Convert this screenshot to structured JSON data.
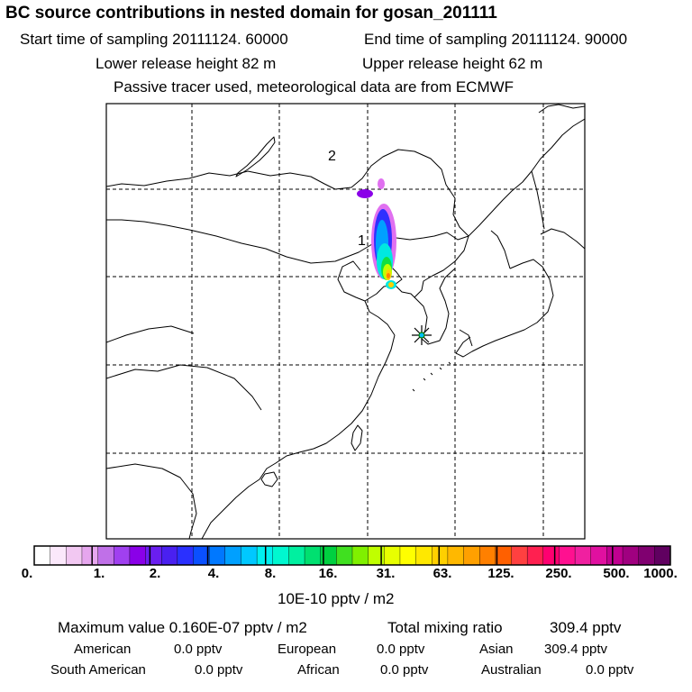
{
  "header": {
    "title": "BC  source contributions in nested domain for gosan_201111",
    "start_time": "Start time of sampling 20111124. 60000",
    "end_time": "End time of sampling 20111124. 90000",
    "lower_height": "Lower release height   82 m",
    "upper_height": "Upper release height   62 m",
    "tracer_note": "Passive tracer used, meteorological data are from ECMWF"
  },
  "map": {
    "region_labels": [
      "2",
      "1"
    ],
    "receptor_marker": "star-icon",
    "plume_colors": [
      "#8a00e8",
      "#e070f0",
      "#3030ff",
      "#00a0ff",
      "#00e8e0",
      "#10e040",
      "#c0ff00",
      "#ffd000",
      "#ff8000",
      "#ff0000"
    ]
  },
  "colorbar": {
    "colors": [
      "#ffffff",
      "#fbe8fb",
      "#f2c8f2",
      "#e6a6ee",
      "#c070e8",
      "#a040f0",
      "#8a00e8",
      "#6a1ef0",
      "#4a20f0",
      "#2a30ff",
      "#0a50ff",
      "#0078ff",
      "#00a0ff",
      "#00c8ff",
      "#00f0f0",
      "#00f8d0",
      "#00f0a0",
      "#00e070",
      "#00d040",
      "#40e020",
      "#80f000",
      "#c0ff00",
      "#e8ff00",
      "#ffff00",
      "#ffe800",
      "#ffd000",
      "#ffb800",
      "#ffa000",
      "#ff8000",
      "#ff6000",
      "#ff4040",
      "#ff2050",
      "#ff0070",
      "#ff1090",
      "#f020a0",
      "#e010a0",
      "#c00090",
      "#a00080",
      "#800070",
      "#600060"
    ],
    "ticks": [
      "0.",
      "1.",
      "2.",
      "4.",
      "8.",
      "16.",
      "31.",
      "63.",
      "125.",
      "250.",
      "500.",
      "1000."
    ],
    "unit_label": "10E-10 pptv / m2"
  },
  "stats": {
    "maximum_value": "Maximum value  0.160E-07 pptv / m2",
    "total_mixing": "Total mixing ratio",
    "total_mixing_value": "309.4 pptv",
    "american_label": "American",
    "american_value": "0.0 pptv",
    "european_label": "European",
    "european_value": "0.0 pptv",
    "asian_label": "Asian",
    "asian_value": "309.4 pptv",
    "south_american_label": "South American",
    "south_american_value": "0.0 pptv",
    "african_label": "African",
    "african_value": "0.0 pptv",
    "australian_label": "Australian",
    "australian_value": "0.0 pptv"
  }
}
